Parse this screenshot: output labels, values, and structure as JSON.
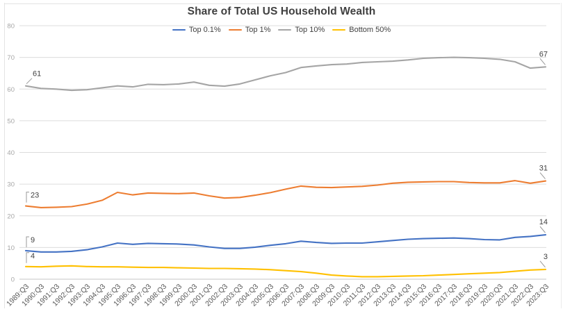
{
  "chart_data": {
    "type": "line",
    "title": "Share of Total US Household Wealth",
    "x_labels": [
      "1989:Q3",
      "1990:Q3",
      "1991:Q3",
      "1992:Q3",
      "1993:Q3",
      "1994:Q3",
      "1995:Q3",
      "1996:Q3",
      "1997:Q3",
      "1998:Q3",
      "1999:Q3",
      "2000:Q3",
      "2001:Q3",
      "2002:Q3",
      "2003:Q3",
      "2004:Q3",
      "2005:Q3",
      "2006:Q3",
      "2007:Q3",
      "2008:Q3",
      "2009:Q3",
      "2010:Q3",
      "2011:Q3",
      "2012:Q3",
      "2013:Q3",
      "2014:Q3",
      "2015:Q3",
      "2016:Q3",
      "2017:Q3",
      "2018:Q3",
      "2019:Q3",
      "2020:Q3",
      "2021:Q3",
      "2022:Q3",
      "2023:Q3"
    ],
    "series": [
      {
        "name": "Top 0.1%",
        "color": "#4472C4",
        "values": [
          9.0,
          8.6,
          8.6,
          8.8,
          9.3,
          10.2,
          11.4,
          11.0,
          11.3,
          11.2,
          11.1,
          10.8,
          10.2,
          9.7,
          9.7,
          10.1,
          10.7,
          11.2,
          12.0,
          11.6,
          11.3,
          11.4,
          11.4,
          11.8,
          12.2,
          12.6,
          12.8,
          12.9,
          13.0,
          12.8,
          12.5,
          12.4,
          13.2,
          13.5,
          14.0
        ]
      },
      {
        "name": "Top 1%",
        "color": "#ED7D31",
        "values": [
          23.1,
          22.6,
          22.7,
          22.9,
          23.7,
          24.9,
          27.4,
          26.6,
          27.2,
          27.1,
          27.0,
          27.2,
          26.3,
          25.6,
          25.8,
          26.5,
          27.3,
          28.4,
          29.4,
          29.0,
          28.9,
          29.1,
          29.3,
          29.7,
          30.3,
          30.6,
          30.7,
          30.8,
          30.8,
          30.5,
          30.4,
          30.4,
          31.1,
          30.3,
          31.0
        ]
      },
      {
        "name": "Top 10%",
        "color": "#A5A5A5",
        "values": [
          61.0,
          60.2,
          60.0,
          59.6,
          59.8,
          60.4,
          61.0,
          60.7,
          61.5,
          61.4,
          61.6,
          62.2,
          61.2,
          60.9,
          61.6,
          62.9,
          64.2,
          65.2,
          66.8,
          67.3,
          67.7,
          67.9,
          68.4,
          68.6,
          68.8,
          69.2,
          69.7,
          69.9,
          70.0,
          69.9,
          69.7,
          69.4,
          68.6,
          66.6,
          67.0
        ]
      },
      {
        "name": "Bottom 50%",
        "color": "#FFC000",
        "values": [
          4.0,
          3.9,
          4.1,
          4.2,
          4.0,
          3.9,
          3.9,
          3.8,
          3.7,
          3.7,
          3.6,
          3.5,
          3.4,
          3.4,
          3.3,
          3.2,
          3.0,
          2.7,
          2.4,
          1.9,
          1.3,
          1.0,
          0.8,
          0.8,
          0.9,
          1.0,
          1.1,
          1.3,
          1.5,
          1.7,
          1.9,
          2.1,
          2.5,
          2.9,
          3.1
        ]
      }
    ],
    "ylim": [
      0,
      80
    ],
    "yticks": [
      0,
      10,
      20,
      30,
      40,
      50,
      60,
      70,
      80
    ],
    "grid": true,
    "legend_position": "top-center",
    "annotations": [
      {
        "text": "61",
        "series": 2,
        "point": "first",
        "leader": "diag"
      },
      {
        "text": "23",
        "series": 1,
        "point": "first",
        "leader": "elbow"
      },
      {
        "text": "9",
        "series": 0,
        "point": "first",
        "leader": "elbow"
      },
      {
        "text": "4",
        "series": 3,
        "point": "first",
        "leader": "elbow"
      },
      {
        "text": "67",
        "series": 2,
        "point": "last",
        "leader": "diag"
      },
      {
        "text": "31",
        "series": 1,
        "point": "last",
        "leader": "diag"
      },
      {
        "text": "14",
        "series": 0,
        "point": "last",
        "leader": "diag"
      },
      {
        "text": "3",
        "series": 3,
        "point": "last",
        "leader": "diag"
      }
    ]
  },
  "colors": {
    "background": "#ffffff",
    "gridline": "#dcdcdc",
    "zero_line": "#c6c6c6",
    "y_tick_label": "#a6a6a6",
    "x_tick_label": "#595959",
    "title": "#404040",
    "data_label": "#404040",
    "leader_line": "#999999",
    "window_border": "#e3e3e3"
  }
}
